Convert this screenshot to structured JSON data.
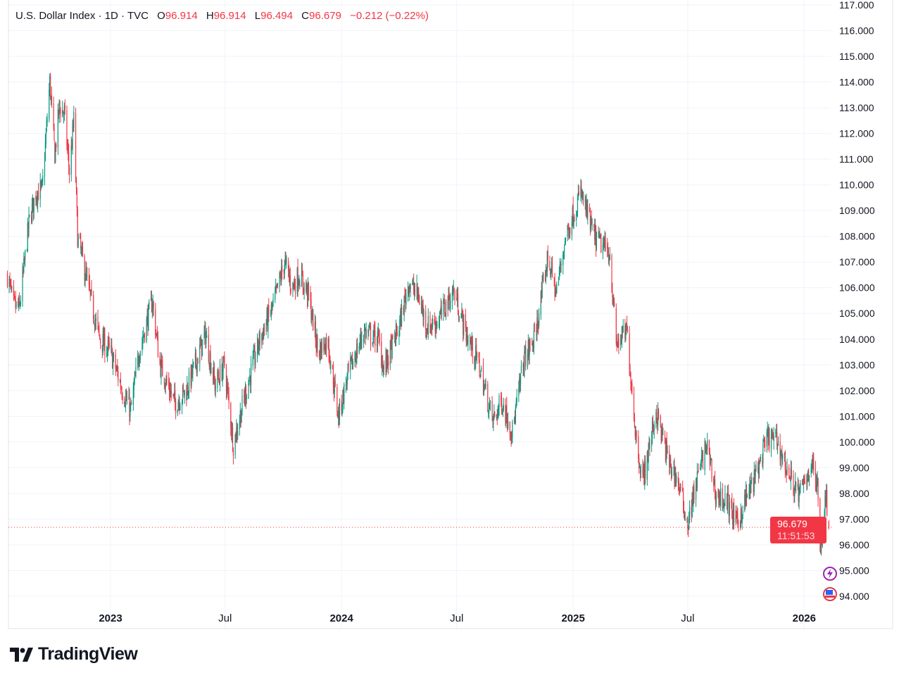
{
  "header": {
    "symbol": "U.S. Dollar Index · 1D · TVC",
    "open_label": "O",
    "open": "96.914",
    "high_label": "H",
    "high": "96.914",
    "low_label": "L",
    "low": "96.494",
    "close_label": "C",
    "close": "96.679",
    "change": "−0.212 (−0.22%)"
  },
  "last_price": {
    "value": "96.679",
    "countdown": "11:51:53"
  },
  "brand": {
    "name": "TradingView"
  },
  "colors": {
    "up": "#089981",
    "down": "#f23645",
    "grid": "#f0f3fa",
    "text": "#131722"
  },
  "chart_data": {
    "type": "candlestick",
    "title": "U.S. Dollar Index · 1D · TVC",
    "ylim": [
      94,
      117
    ],
    "y_ticks": [
      "94.000",
      "95.000",
      "96.000",
      "97.000",
      "98.000",
      "99.000",
      "100.000",
      "101.000",
      "102.000",
      "103.000",
      "104.000",
      "105.000",
      "106.000",
      "107.000",
      "108.000",
      "109.000",
      "110.000",
      "111.000",
      "112.000",
      "113.000",
      "114.000",
      "115.000",
      "116.000",
      "117.000"
    ],
    "x_ticks": [
      {
        "label": "2023",
        "date": "2023-01-01",
        "bold": true
      },
      {
        "label": "Jul",
        "date": "2023-07-01",
        "bold": false
      },
      {
        "label": "2024",
        "date": "2024-01-01",
        "bold": true
      },
      {
        "label": "Jul",
        "date": "2024-07-01",
        "bold": false
      },
      {
        "label": "2025",
        "date": "2025-01-01",
        "bold": true
      },
      {
        "label": "Jul",
        "date": "2025-07-01",
        "bold": false
      },
      {
        "label": "2026",
        "date": "2026-01-01",
        "bold": true
      }
    ],
    "close_path": [
      [
        "2022-07-22",
        106.5
      ],
      [
        "2022-08-01",
        105.3
      ],
      [
        "2022-08-10",
        105.2
      ],
      [
        "2022-08-25",
        108.5
      ],
      [
        "2022-09-05",
        109.7
      ],
      [
        "2022-09-15",
        109.8
      ],
      [
        "2022-09-27",
        114.0
      ],
      [
        "2022-10-05",
        111.2
      ],
      [
        "2022-10-12",
        113.0
      ],
      [
        "2022-10-20",
        112.8
      ],
      [
        "2022-10-28",
        110.5
      ],
      [
        "2022-11-04",
        112.5
      ],
      [
        "2022-11-10",
        108.0
      ],
      [
        "2022-11-20",
        106.8
      ],
      [
        "2022-12-01",
        105.5
      ],
      [
        "2022-12-15",
        104.0
      ],
      [
        "2023-01-01",
        103.5
      ],
      [
        "2023-01-20",
        102.0
      ],
      [
        "2023-02-02",
        101.2
      ],
      [
        "2023-02-15",
        103.5
      ],
      [
        "2023-03-08",
        105.5
      ],
      [
        "2023-03-20",
        103.0
      ],
      [
        "2023-04-13",
        101.5
      ],
      [
        "2023-05-01",
        102.0
      ],
      [
        "2023-05-31",
        104.2
      ],
      [
        "2023-06-15",
        102.2
      ],
      [
        "2023-06-30",
        103.0
      ],
      [
        "2023-07-14",
        99.9
      ],
      [
        "2023-07-31",
        101.7
      ],
      [
        "2023-08-25",
        104.0
      ],
      [
        "2023-09-15",
        105.3
      ],
      [
        "2023-10-03",
        107.0
      ],
      [
        "2023-10-15",
        106.0
      ],
      [
        "2023-10-26",
        106.5
      ],
      [
        "2023-11-10",
        105.7
      ],
      [
        "2023-11-25",
        103.5
      ],
      [
        "2023-12-10",
        104.0
      ],
      [
        "2023-12-27",
        101.0
      ],
      [
        "2024-01-10",
        102.5
      ],
      [
        "2024-02-05",
        104.3
      ],
      [
        "2024-02-28",
        104.0
      ],
      [
        "2024-03-08",
        102.8
      ],
      [
        "2024-04-01",
        104.5
      ],
      [
        "2024-04-16",
        106.2
      ],
      [
        "2024-05-01",
        105.7
      ],
      [
        "2024-05-15",
        104.5
      ],
      [
        "2024-06-01",
        104.7
      ],
      [
        "2024-06-26",
        105.9
      ],
      [
        "2024-07-16",
        104.2
      ],
      [
        "2024-08-05",
        103.0
      ],
      [
        "2024-08-27",
        100.8
      ],
      [
        "2024-09-10",
        101.6
      ],
      [
        "2024-09-27",
        100.4
      ],
      [
        "2024-10-15",
        103.2
      ],
      [
        "2024-11-01",
        104.0
      ],
      [
        "2024-11-22",
        107.2
      ],
      [
        "2024-12-05",
        105.8
      ],
      [
        "2024-12-20",
        108.0
      ],
      [
        "2025-01-13",
        109.7
      ],
      [
        "2025-02-03",
        108.0
      ],
      [
        "2025-02-28",
        107.3
      ],
      [
        "2025-03-10",
        103.8
      ],
      [
        "2025-03-27",
        104.3
      ],
      [
        "2025-04-11",
        100.0
      ],
      [
        "2025-04-21",
        98.5
      ],
      [
        "2025-05-12",
        101.2
      ],
      [
        "2025-06-01",
        99.2
      ],
      [
        "2025-06-15",
        98.5
      ],
      [
        "2025-07-01",
        96.8
      ],
      [
        "2025-07-15",
        98.5
      ],
      [
        "2025-07-31",
        99.9
      ],
      [
        "2025-08-15",
        97.9
      ],
      [
        "2025-09-01",
        97.7
      ],
      [
        "2025-09-17",
        96.8
      ],
      [
        "2025-10-01",
        97.8
      ],
      [
        "2025-10-15",
        98.6
      ],
      [
        "2025-11-05",
        100.2
      ],
      [
        "2025-11-20",
        100.0
      ],
      [
        "2025-12-05",
        98.9
      ],
      [
        "2025-12-24",
        97.9
      ],
      [
        "2026-01-13",
        99.2
      ],
      [
        "2026-01-22",
        98.2
      ],
      [
        "2026-01-27",
        96.0
      ],
      [
        "2026-02-02",
        97.5
      ],
      [
        "2026-02-05",
        97.9
      ],
      [
        "2026-02-09",
        96.679
      ]
    ],
    "last_close": 96.679,
    "grid": true
  }
}
